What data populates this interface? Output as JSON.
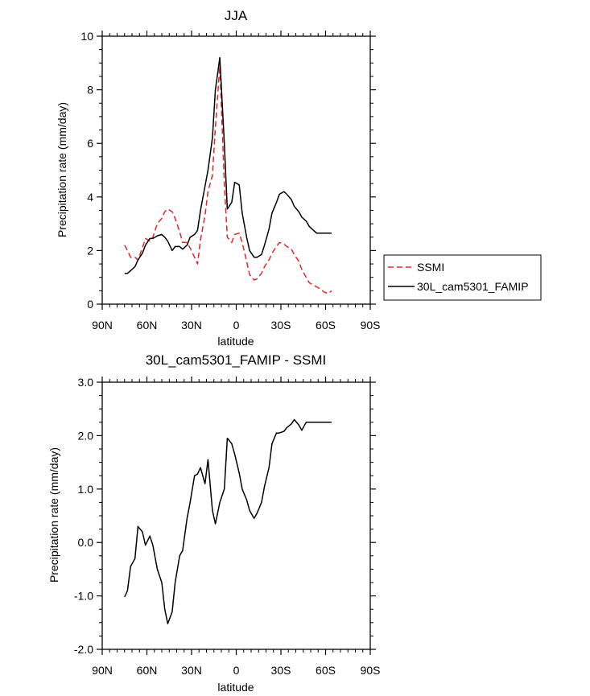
{
  "chart_data": [
    {
      "type": "line",
      "title": "JJA",
      "xlabel": "latitude",
      "ylabel": "Precipitation rate (mm/day)",
      "xlim": [
        90,
        -90
      ],
      "ylim": [
        0,
        10
      ],
      "x_ticks": [
        90,
        60,
        30,
        0,
        -30,
        -60,
        -90
      ],
      "x_tick_labels": [
        "90N",
        "60N",
        "30N",
        "0",
        "30S",
        "60S",
        "90S"
      ],
      "y_ticks": [
        0,
        2,
        4,
        6,
        8,
        10
      ],
      "y_tick_labels": [
        "0",
        "2",
        "4",
        "6",
        "8",
        "10"
      ],
      "legend": {
        "placement": "right",
        "entries": [
          {
            "label": "SSMI",
            "color": "#e8242a",
            "dash": "dashed"
          },
          {
            "label": "30L_cam5301_FAMIP",
            "color": "#000000",
            "dash": "solid"
          }
        ]
      },
      "series": [
        {
          "name": "SSMI",
          "color": "#e8242a",
          "dash": "dashed",
          "x": [
            75,
            73,
            71,
            68,
            66,
            63,
            61,
            58,
            56,
            53,
            50,
            48,
            46,
            43,
            41,
            38,
            36,
            33,
            31,
            28,
            26,
            24,
            21,
            19,
            16,
            14,
            11,
            8,
            6,
            3,
            1,
            -2,
            -4,
            -7,
            -9,
            -12,
            -14,
            -17,
            -19,
            -22,
            -24,
            -27,
            -29,
            -32,
            -34,
            -37,
            -39,
            -42,
            -44,
            -47,
            -49,
            -52,
            -54,
            -57,
            -59,
            -62,
            -64
          ],
          "values": [
            2.2,
            2.0,
            1.75,
            1.75,
            1.65,
            2.1,
            2.45,
            2.35,
            2.5,
            3.0,
            3.2,
            3.45,
            3.55,
            3.45,
            3.2,
            2.7,
            2.3,
            2.3,
            2.1,
            1.75,
            1.5,
            2.4,
            3.3,
            4.2,
            4.8,
            6.6,
            8.9,
            4.5,
            2.5,
            2.3,
            2.6,
            2.65,
            2.3,
            1.6,
            1.1,
            0.9,
            0.95,
            1.15,
            1.4,
            1.65,
            1.9,
            2.15,
            2.3,
            2.25,
            2.15,
            2.05,
            1.85,
            1.6,
            1.3,
            1.0,
            0.8,
            0.7,
            0.65,
            0.55,
            0.45,
            0.4,
            0.5
          ]
        },
        {
          "name": "30L_cam5301_FAMIP",
          "color": "#000000",
          "dash": "solid",
          "x": [
            75,
            73,
            71,
            68,
            66,
            63,
            61,
            58,
            56,
            53,
            50,
            48,
            46,
            43,
            41,
            38,
            36,
            33,
            31,
            28,
            26,
            24,
            21,
            19,
            16,
            14,
            11,
            8,
            6,
            3,
            1,
            -2,
            -4,
            -7,
            -9,
            -12,
            -14,
            -17,
            -19,
            -22,
            -24,
            -27,
            -29,
            -32,
            -34,
            -37,
            -39,
            -42,
            -44,
            -47,
            -49,
            -52,
            -54,
            -57,
            -59,
            -62,
            -64
          ],
          "values": [
            1.15,
            1.15,
            1.25,
            1.4,
            1.65,
            1.9,
            2.2,
            2.45,
            2.45,
            2.55,
            2.6,
            2.5,
            2.35,
            2.0,
            2.15,
            2.15,
            2.05,
            2.2,
            2.5,
            2.6,
            2.75,
            3.5,
            4.4,
            5.0,
            6.2,
            8.0,
            9.2,
            6.0,
            3.55,
            3.8,
            4.55,
            4.45,
            3.4,
            2.5,
            2.0,
            1.75,
            1.75,
            1.85,
            2.2,
            2.8,
            3.4,
            3.8,
            4.1,
            4.2,
            4.1,
            3.9,
            3.65,
            3.45,
            3.25,
            3.1,
            2.9,
            2.75,
            2.65,
            2.65,
            2.65,
            2.65,
            2.65
          ]
        }
      ]
    },
    {
      "type": "line",
      "title": "30L_cam5301_FAMIP - SSMI",
      "xlabel": "latitude",
      "ylabel": "Precipitation rate (mm/day)",
      "xlim": [
        90,
        -90
      ],
      "ylim": [
        -2,
        3
      ],
      "x_ticks": [
        90,
        60,
        30,
        0,
        -30,
        -60,
        -90
      ],
      "x_tick_labels": [
        "90N",
        "60N",
        "30N",
        "0",
        "30S",
        "60S",
        "90S"
      ],
      "y_ticks": [
        -2,
        -1,
        0,
        1,
        2,
        3
      ],
      "y_tick_labels": [
        "-2.0",
        "-1.0",
        "0.0",
        "1.0",
        "2.0",
        "3.0"
      ],
      "series": [
        {
          "name": "30L_cam5301_FAMIP - SSMI",
          "color": "#000000",
          "dash": "solid",
          "x": [
            75,
            73,
            71,
            68,
            66,
            63,
            61,
            58,
            56,
            53,
            50,
            48,
            46,
            43,
            41,
            38,
            36,
            33,
            31,
            28,
            26,
            24,
            21,
            19,
            16,
            14,
            11,
            8,
            6,
            3,
            1,
            -2,
            -4,
            -7,
            -9,
            -12,
            -14,
            -17,
            -19,
            -22,
            -24,
            -27,
            -29,
            -32,
            -34,
            -37,
            -39,
            -42,
            -44,
            -47,
            -49,
            -52,
            -54,
            -57,
            -59,
            -62,
            -64
          ],
          "values": [
            -1.02,
            -0.9,
            -0.45,
            -0.3,
            0.3,
            0.2,
            -0.05,
            0.12,
            -0.05,
            -0.5,
            -0.75,
            -1.25,
            -1.52,
            -1.3,
            -0.75,
            -0.25,
            -0.15,
            0.45,
            0.75,
            1.25,
            1.28,
            1.4,
            1.1,
            1.55,
            0.6,
            0.35,
            0.75,
            1.0,
            1.95,
            1.85,
            1.65,
            1.3,
            1.0,
            0.8,
            0.6,
            0.45,
            0.55,
            0.75,
            1.05,
            1.4,
            1.85,
            2.05,
            2.05,
            2.08,
            2.15,
            2.22,
            2.3,
            2.2,
            2.1,
            2.25,
            2.25,
            2.25,
            2.25,
            2.25,
            2.25,
            2.25,
            2.25
          ]
        }
      ]
    }
  ]
}
